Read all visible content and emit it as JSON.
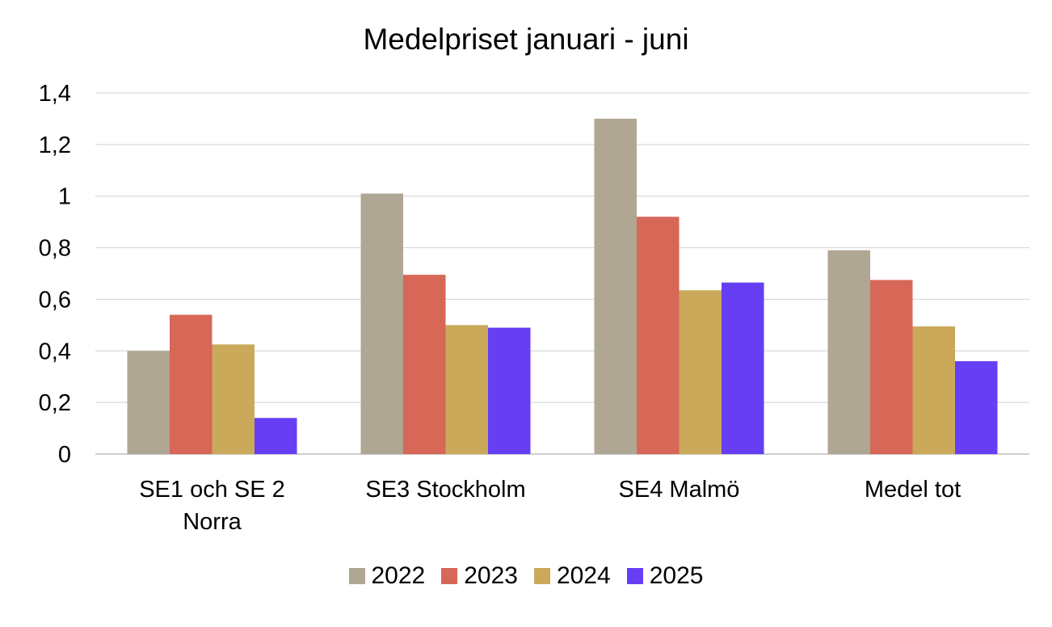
{
  "chart_data": {
    "type": "bar",
    "title": "Medelpriset januari - juni",
    "categories": [
      [
        "SE1 och SE 2",
        "Norra"
      ],
      [
        "SE3 Stockholm"
      ],
      [
        "SE4 Malmö"
      ],
      [
        "Medel tot"
      ]
    ],
    "series": [
      {
        "name": "2022",
        "color": "#b0a694",
        "values": [
          0.4,
          1.01,
          1.3,
          0.79
        ]
      },
      {
        "name": "2023",
        "color": "#d76757",
        "values": [
          0.54,
          0.695,
          0.92,
          0.675
        ]
      },
      {
        "name": "2024",
        "color": "#caa95a",
        "values": [
          0.425,
          0.5,
          0.635,
          0.495
        ]
      },
      {
        "name": "2025",
        "color": "#663ef4",
        "values": [
          0.14,
          0.49,
          0.665,
          0.36
        ]
      }
    ],
    "yticks": [
      "0",
      "0,2",
      "0,4",
      "0,6",
      "0,8",
      "1",
      "1,2",
      "1,4"
    ],
    "ylim": [
      0,
      1.4
    ],
    "grid": true,
    "legend_position": "bottom"
  }
}
